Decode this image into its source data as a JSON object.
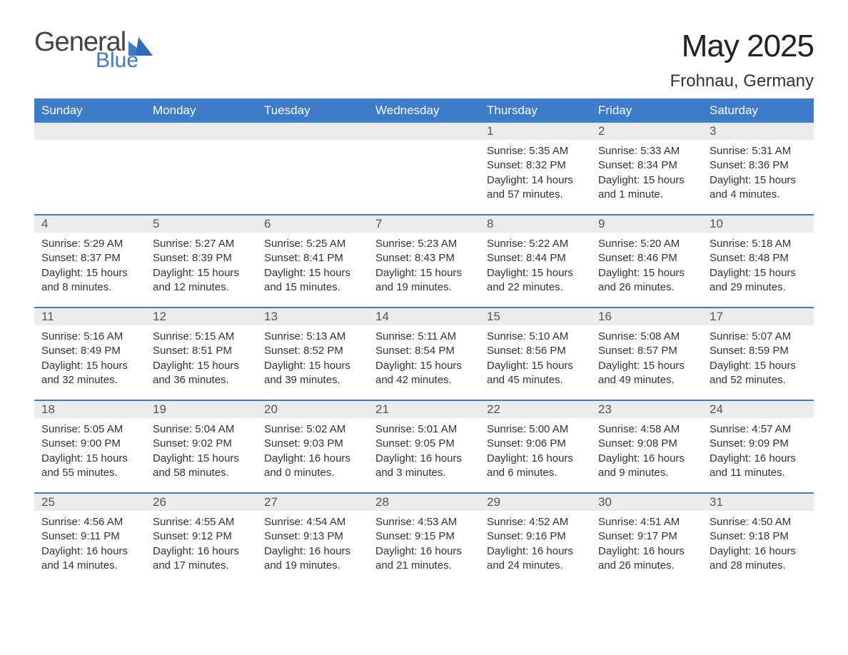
{
  "brand": {
    "word1": "General",
    "word2": "Blue",
    "text_color": "#444444",
    "accent_color": "#3d7cc9"
  },
  "title": "May 2025",
  "location": "Frohnau, Germany",
  "colors": {
    "header_bg": "#3d7cc9",
    "header_text": "#ffffff",
    "daynum_bg": "#ececec",
    "daynum_text": "#555555",
    "body_text": "#333333",
    "week_divider": "#3d7cc9",
    "page_bg": "#ffffff"
  },
  "typography": {
    "title_fontsize": 44,
    "location_fontsize": 24,
    "header_fontsize": 17,
    "daynum_fontsize": 17,
    "body_fontsize": 15
  },
  "layout": {
    "columns": 7,
    "rows": 5,
    "week_start": "Sunday"
  },
  "day_headers": [
    "Sunday",
    "Monday",
    "Tuesday",
    "Wednesday",
    "Thursday",
    "Friday",
    "Saturday"
  ],
  "weeks": [
    [
      {
        "empty": true
      },
      {
        "empty": true
      },
      {
        "empty": true
      },
      {
        "empty": true
      },
      {
        "num": "1",
        "sunrise": "Sunrise: 5:35 AM",
        "sunset": "Sunset: 8:32 PM",
        "daylight": "Daylight: 14 hours and 57 minutes."
      },
      {
        "num": "2",
        "sunrise": "Sunrise: 5:33 AM",
        "sunset": "Sunset: 8:34 PM",
        "daylight": "Daylight: 15 hours and 1 minute."
      },
      {
        "num": "3",
        "sunrise": "Sunrise: 5:31 AM",
        "sunset": "Sunset: 8:36 PM",
        "daylight": "Daylight: 15 hours and 4 minutes."
      }
    ],
    [
      {
        "num": "4",
        "sunrise": "Sunrise: 5:29 AM",
        "sunset": "Sunset: 8:37 PM",
        "daylight": "Daylight: 15 hours and 8 minutes."
      },
      {
        "num": "5",
        "sunrise": "Sunrise: 5:27 AM",
        "sunset": "Sunset: 8:39 PM",
        "daylight": "Daylight: 15 hours and 12 minutes."
      },
      {
        "num": "6",
        "sunrise": "Sunrise: 5:25 AM",
        "sunset": "Sunset: 8:41 PM",
        "daylight": "Daylight: 15 hours and 15 minutes."
      },
      {
        "num": "7",
        "sunrise": "Sunrise: 5:23 AM",
        "sunset": "Sunset: 8:43 PM",
        "daylight": "Daylight: 15 hours and 19 minutes."
      },
      {
        "num": "8",
        "sunrise": "Sunrise: 5:22 AM",
        "sunset": "Sunset: 8:44 PM",
        "daylight": "Daylight: 15 hours and 22 minutes."
      },
      {
        "num": "9",
        "sunrise": "Sunrise: 5:20 AM",
        "sunset": "Sunset: 8:46 PM",
        "daylight": "Daylight: 15 hours and 26 minutes."
      },
      {
        "num": "10",
        "sunrise": "Sunrise: 5:18 AM",
        "sunset": "Sunset: 8:48 PM",
        "daylight": "Daylight: 15 hours and 29 minutes."
      }
    ],
    [
      {
        "num": "11",
        "sunrise": "Sunrise: 5:16 AM",
        "sunset": "Sunset: 8:49 PM",
        "daylight": "Daylight: 15 hours and 32 minutes."
      },
      {
        "num": "12",
        "sunrise": "Sunrise: 5:15 AM",
        "sunset": "Sunset: 8:51 PM",
        "daylight": "Daylight: 15 hours and 36 minutes."
      },
      {
        "num": "13",
        "sunrise": "Sunrise: 5:13 AM",
        "sunset": "Sunset: 8:52 PM",
        "daylight": "Daylight: 15 hours and 39 minutes."
      },
      {
        "num": "14",
        "sunrise": "Sunrise: 5:11 AM",
        "sunset": "Sunset: 8:54 PM",
        "daylight": "Daylight: 15 hours and 42 minutes."
      },
      {
        "num": "15",
        "sunrise": "Sunrise: 5:10 AM",
        "sunset": "Sunset: 8:56 PM",
        "daylight": "Daylight: 15 hours and 45 minutes."
      },
      {
        "num": "16",
        "sunrise": "Sunrise: 5:08 AM",
        "sunset": "Sunset: 8:57 PM",
        "daylight": "Daylight: 15 hours and 49 minutes."
      },
      {
        "num": "17",
        "sunrise": "Sunrise: 5:07 AM",
        "sunset": "Sunset: 8:59 PM",
        "daylight": "Daylight: 15 hours and 52 minutes."
      }
    ],
    [
      {
        "num": "18",
        "sunrise": "Sunrise: 5:05 AM",
        "sunset": "Sunset: 9:00 PM",
        "daylight": "Daylight: 15 hours and 55 minutes."
      },
      {
        "num": "19",
        "sunrise": "Sunrise: 5:04 AM",
        "sunset": "Sunset: 9:02 PM",
        "daylight": "Daylight: 15 hours and 58 minutes."
      },
      {
        "num": "20",
        "sunrise": "Sunrise: 5:02 AM",
        "sunset": "Sunset: 9:03 PM",
        "daylight": "Daylight: 16 hours and 0 minutes."
      },
      {
        "num": "21",
        "sunrise": "Sunrise: 5:01 AM",
        "sunset": "Sunset: 9:05 PM",
        "daylight": "Daylight: 16 hours and 3 minutes."
      },
      {
        "num": "22",
        "sunrise": "Sunrise: 5:00 AM",
        "sunset": "Sunset: 9:06 PM",
        "daylight": "Daylight: 16 hours and 6 minutes."
      },
      {
        "num": "23",
        "sunrise": "Sunrise: 4:58 AM",
        "sunset": "Sunset: 9:08 PM",
        "daylight": "Daylight: 16 hours and 9 minutes."
      },
      {
        "num": "24",
        "sunrise": "Sunrise: 4:57 AM",
        "sunset": "Sunset: 9:09 PM",
        "daylight": "Daylight: 16 hours and 11 minutes."
      }
    ],
    [
      {
        "num": "25",
        "sunrise": "Sunrise: 4:56 AM",
        "sunset": "Sunset: 9:11 PM",
        "daylight": "Daylight: 16 hours and 14 minutes."
      },
      {
        "num": "26",
        "sunrise": "Sunrise: 4:55 AM",
        "sunset": "Sunset: 9:12 PM",
        "daylight": "Daylight: 16 hours and 17 minutes."
      },
      {
        "num": "27",
        "sunrise": "Sunrise: 4:54 AM",
        "sunset": "Sunset: 9:13 PM",
        "daylight": "Daylight: 16 hours and 19 minutes."
      },
      {
        "num": "28",
        "sunrise": "Sunrise: 4:53 AM",
        "sunset": "Sunset: 9:15 PM",
        "daylight": "Daylight: 16 hours and 21 minutes."
      },
      {
        "num": "29",
        "sunrise": "Sunrise: 4:52 AM",
        "sunset": "Sunset: 9:16 PM",
        "daylight": "Daylight: 16 hours and 24 minutes."
      },
      {
        "num": "30",
        "sunrise": "Sunrise: 4:51 AM",
        "sunset": "Sunset: 9:17 PM",
        "daylight": "Daylight: 16 hours and 26 minutes."
      },
      {
        "num": "31",
        "sunrise": "Sunrise: 4:50 AM",
        "sunset": "Sunset: 9:18 PM",
        "daylight": "Daylight: 16 hours and 28 minutes."
      }
    ]
  ]
}
